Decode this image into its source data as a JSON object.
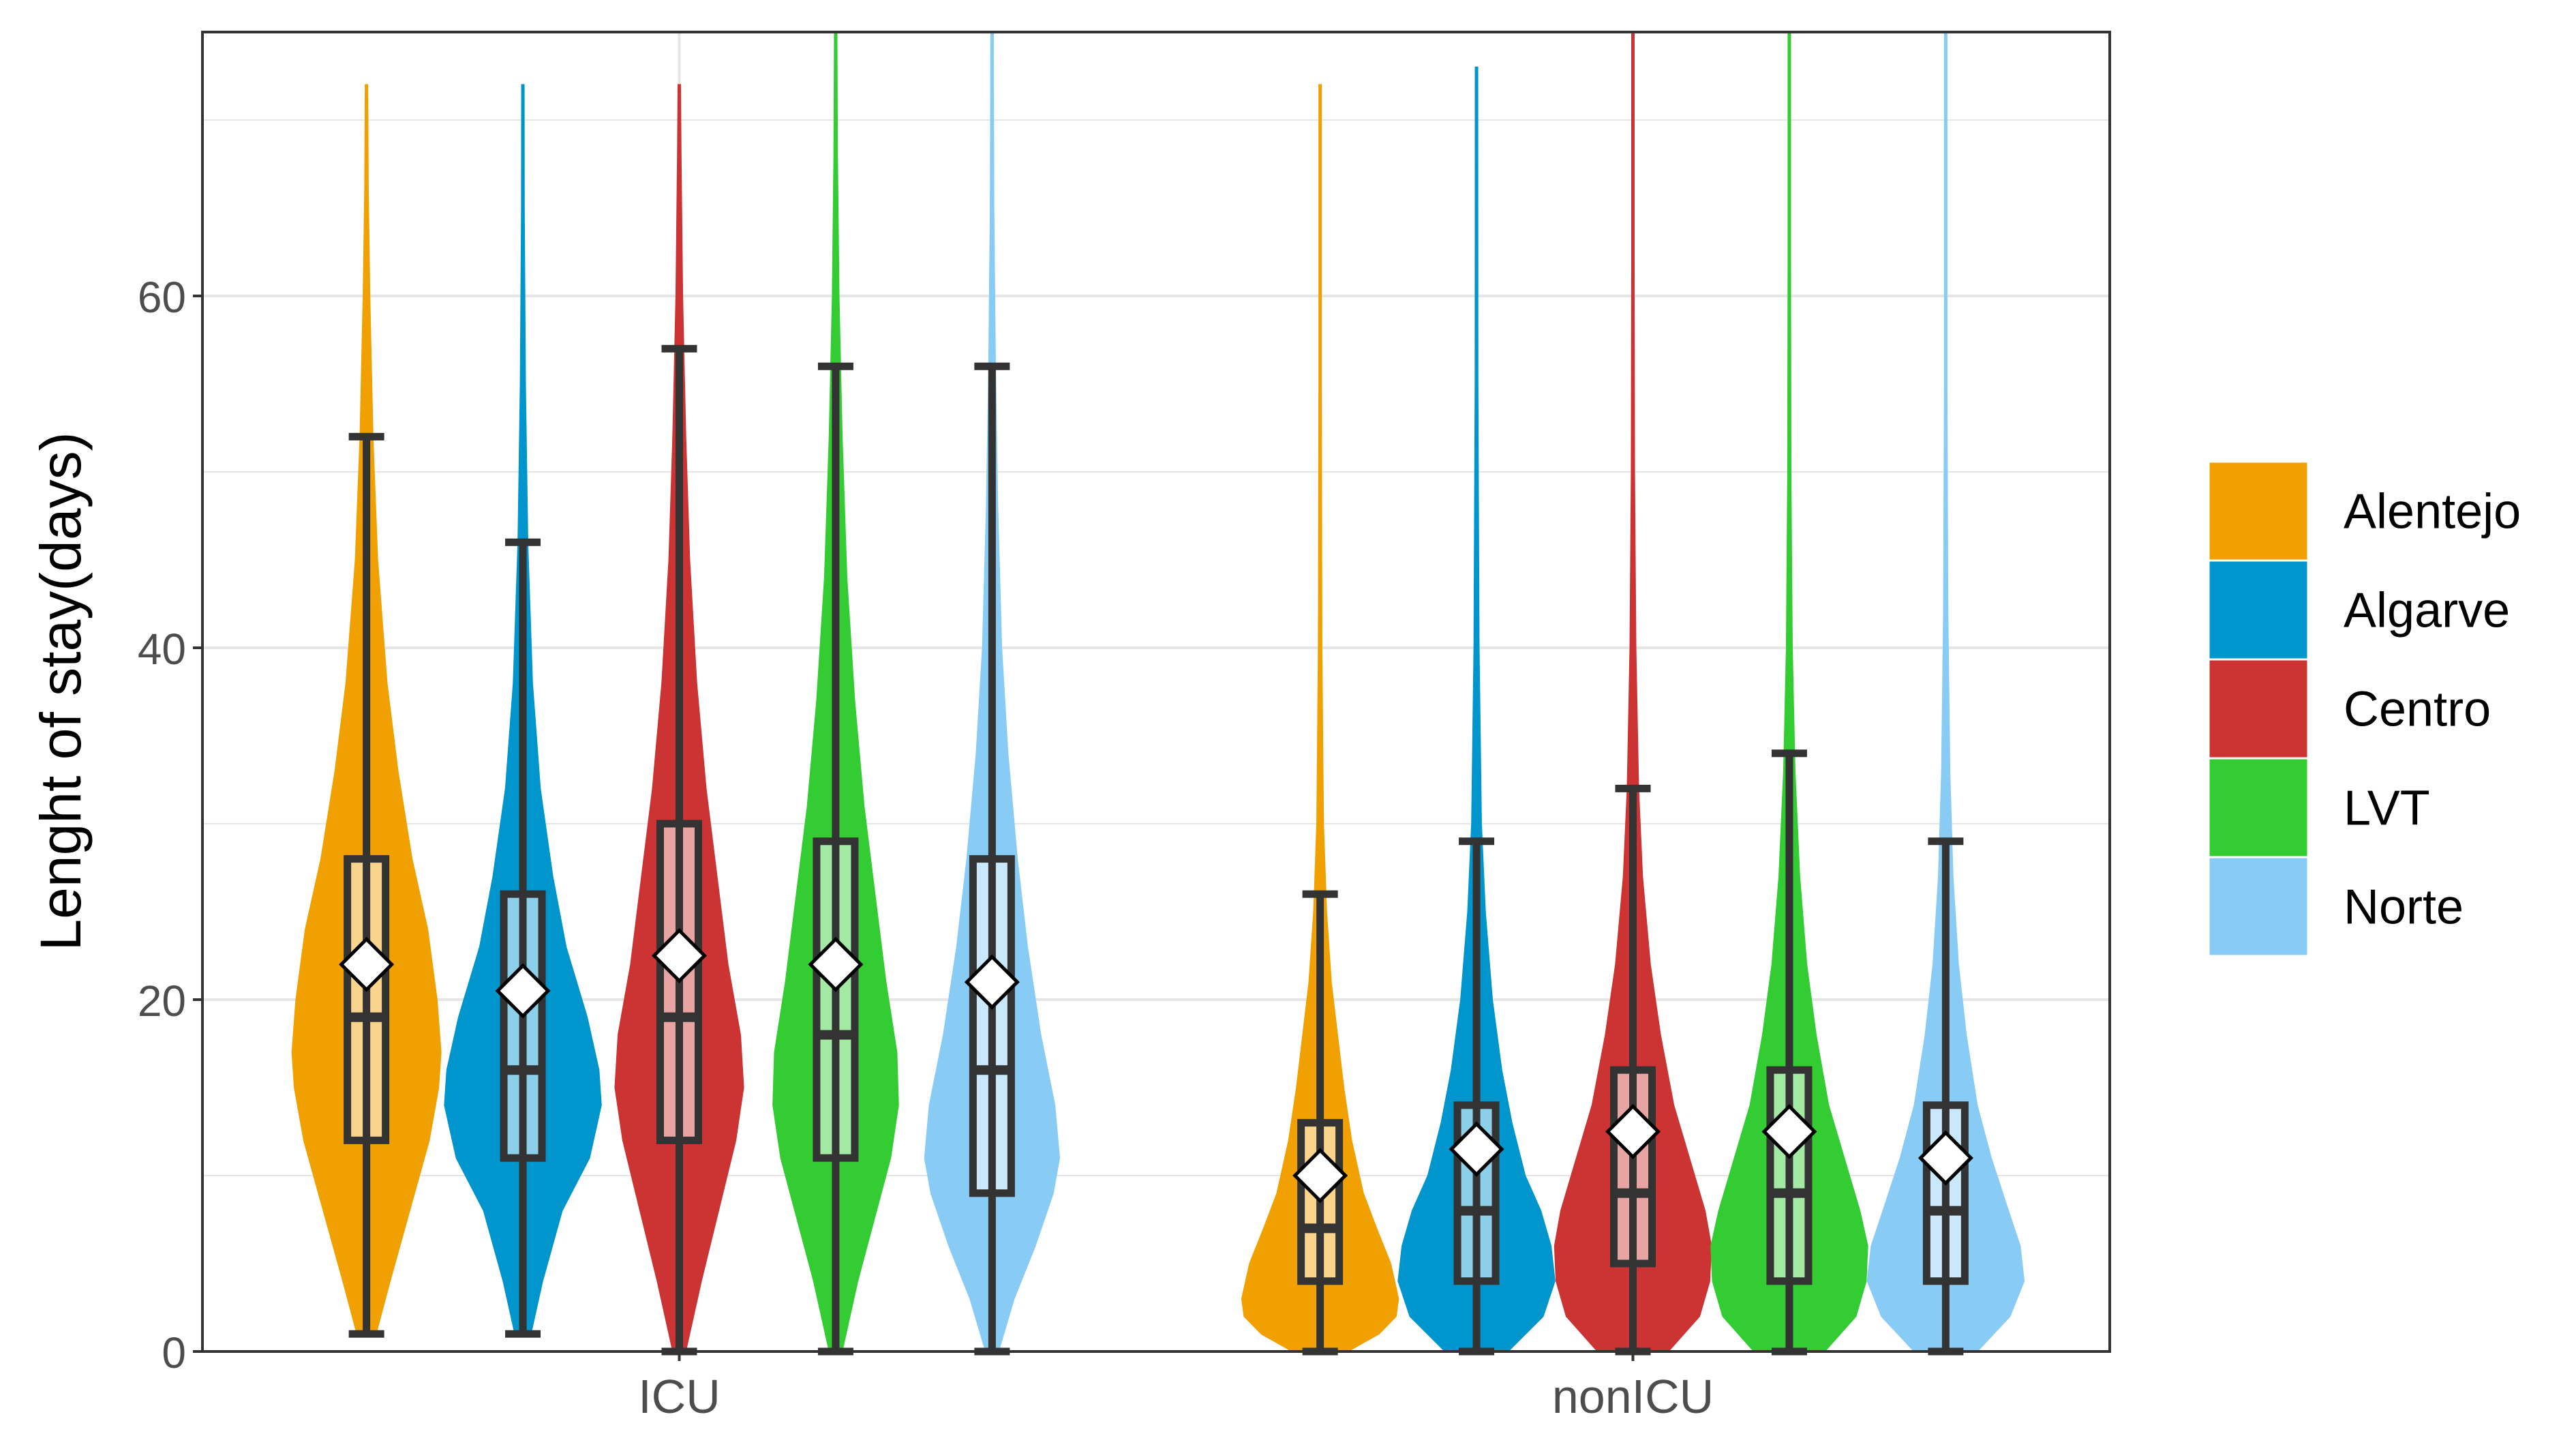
{
  "chart_data": {
    "type": "violin",
    "title": "",
    "xlabel": "",
    "ylabel": "Lenght of stay(days)",
    "ylim": [
      0,
      75
    ],
    "yticks": [
      0,
      20,
      40,
      60
    ],
    "grid": true,
    "legend_position": "right",
    "categories": [
      "ICU",
      "nonICU"
    ],
    "series": [
      {
        "name": "Alentejo",
        "color": "#F0A000",
        "groups": [
          {
            "category": "ICU",
            "min": 1,
            "q1": 12,
            "median": 19,
            "q3": 28,
            "whisker_high": 52,
            "max": 72,
            "mean": 22,
            "density": [
              [
                1,
                0.12
              ],
              [
                4,
                0.3
              ],
              [
                8,
                0.55
              ],
              [
                12,
                0.8
              ],
              [
                15,
                0.92
              ],
              [
                17,
                0.95
              ],
              [
                20,
                0.9
              ],
              [
                24,
                0.78
              ],
              [
                28,
                0.58
              ],
              [
                33,
                0.4
              ],
              [
                38,
                0.26
              ],
              [
                45,
                0.14
              ],
              [
                52,
                0.08
              ],
              [
                60,
                0.04
              ],
              [
                66,
                0.02
              ],
              [
                72,
                0.005
              ]
            ]
          },
          {
            "category": "nonICU",
            "min": 0,
            "q1": 4,
            "median": 7,
            "q3": 13,
            "whisker_high": 26,
            "max": 72,
            "mean": 10,
            "density": [
              [
                0,
                0.35
              ],
              [
                1,
                0.75
              ],
              [
                2,
                0.97
              ],
              [
                3,
                1.0
              ],
              [
                5,
                0.9
              ],
              [
                7,
                0.72
              ],
              [
                9,
                0.55
              ],
              [
                12,
                0.4
              ],
              [
                15,
                0.3
              ],
              [
                18,
                0.22
              ],
              [
                21,
                0.14
              ],
              [
                25,
                0.08
              ],
              [
                30,
                0.04
              ],
              [
                40,
                0.02
              ],
              [
                55,
                0.012
              ],
              [
                72,
                0.004
              ]
            ]
          }
        ]
      },
      {
        "name": "Algarve",
        "color": "#0095CC",
        "groups": [
          {
            "category": "ICU",
            "min": 1,
            "q1": 11,
            "median": 16,
            "q3": 26,
            "whisker_high": 46,
            "max": 72,
            "mean": 20.5,
            "density": [
              [
                1,
                0.1
              ],
              [
                4,
                0.25
              ],
              [
                8,
                0.5
              ],
              [
                11,
                0.85
              ],
              [
                14,
                1.0
              ],
              [
                16,
                0.97
              ],
              [
                19,
                0.82
              ],
              [
                23,
                0.55
              ],
              [
                27,
                0.38
              ],
              [
                32,
                0.22
              ],
              [
                38,
                0.12
              ],
              [
                46,
                0.06
              ],
              [
                55,
                0.03
              ],
              [
                65,
                0.015
              ],
              [
                72,
                0.005
              ]
            ]
          },
          {
            "category": "nonICU",
            "min": 0,
            "q1": 4,
            "median": 8,
            "q3": 14,
            "whisker_high": 29,
            "max": 73,
            "mean": 11.5,
            "density": [
              [
                0,
                0.4
              ],
              [
                2,
                0.85
              ],
              [
                4,
                1.0
              ],
              [
                6,
                0.95
              ],
              [
                8,
                0.82
              ],
              [
                10,
                0.62
              ],
              [
                13,
                0.45
              ],
              [
                16,
                0.32
              ],
              [
                20,
                0.2
              ],
              [
                25,
                0.11
              ],
              [
                30,
                0.06
              ],
              [
                40,
                0.03
              ],
              [
                55,
                0.015
              ],
              [
                73,
                0.004
              ]
            ]
          }
        ]
      },
      {
        "name": "Centro",
        "color": "#CC3333",
        "groups": [
          {
            "category": "ICU",
            "min": 0,
            "q1": 12,
            "median": 19,
            "q3": 30,
            "whisker_high": 57,
            "max": 72,
            "mean": 22.5,
            "density": [
              [
                0,
                0.08
              ],
              [
                4,
                0.28
              ],
              [
                8,
                0.5
              ],
              [
                12,
                0.72
              ],
              [
                15,
                0.82
              ],
              [
                18,
                0.78
              ],
              [
                22,
                0.62
              ],
              [
                27,
                0.48
              ],
              [
                32,
                0.34
              ],
              [
                38,
                0.22
              ],
              [
                45,
                0.13
              ],
              [
                52,
                0.08
              ],
              [
                60,
                0.04
              ],
              [
                68,
                0.02
              ],
              [
                72,
                0.006
              ]
            ]
          },
          {
            "category": "nonICU",
            "min": 0,
            "q1": 5,
            "median": 9,
            "q3": 16,
            "whisker_high": 32,
            "max": 75,
            "mean": 12.5,
            "density": [
              [
                0,
                0.45
              ],
              [
                2,
                0.85
              ],
              [
                4,
                0.98
              ],
              [
                6,
                1.0
              ],
              [
                8,
                0.92
              ],
              [
                11,
                0.72
              ],
              [
                14,
                0.52
              ],
              [
                18,
                0.35
              ],
              [
                22,
                0.22
              ],
              [
                27,
                0.12
              ],
              [
                32,
                0.07
              ],
              [
                40,
                0.035
              ],
              [
                50,
                0.018
              ],
              [
                62,
                0.01
              ],
              [
                75,
                0.003
              ]
            ]
          }
        ]
      },
      {
        "name": "LVT",
        "color": "#33CC33",
        "groups": [
          {
            "category": "ICU",
            "min": 0,
            "q1": 11,
            "median": 18,
            "q3": 29,
            "whisker_high": 56,
            "max": 75,
            "mean": 22,
            "density": [
              [
                0,
                0.08
              ],
              [
                4,
                0.28
              ],
              [
                8,
                0.52
              ],
              [
                11,
                0.7
              ],
              [
                14,
                0.8
              ],
              [
                17,
                0.78
              ],
              [
                21,
                0.64
              ],
              [
                26,
                0.5
              ],
              [
                31,
                0.36
              ],
              [
                37,
                0.24
              ],
              [
                44,
                0.14
              ],
              [
                52,
                0.08
              ],
              [
                60,
                0.04
              ],
              [
                68,
                0.02
              ],
              [
                75,
                0.006
              ]
            ]
          },
          {
            "category": "nonICU",
            "min": 0,
            "q1": 4,
            "median": 9,
            "q3": 16,
            "whisker_high": 34,
            "max": 75,
            "mean": 12.5,
            "density": [
              [
                0,
                0.45
              ],
              [
                2,
                0.85
              ],
              [
                4,
                0.98
              ],
              [
                6,
                1.0
              ],
              [
                8,
                0.9
              ],
              [
                11,
                0.7
              ],
              [
                14,
                0.5
              ],
              [
                18,
                0.34
              ],
              [
                22,
                0.22
              ],
              [
                27,
                0.13
              ],
              [
                33,
                0.07
              ],
              [
                40,
                0.035
              ],
              [
                50,
                0.018
              ],
              [
                62,
                0.01
              ],
              [
                75,
                0.003
              ]
            ]
          }
        ]
      },
      {
        "name": "Norte",
        "color": "#88CCF5",
        "groups": [
          {
            "category": "ICU",
            "min": 0,
            "q1": 9,
            "median": 16,
            "q3": 28,
            "whisker_high": 56,
            "max": 75,
            "mean": 21,
            "density": [
              [
                0,
                0.08
              ],
              [
                3,
                0.28
              ],
              [
                6,
                0.55
              ],
              [
                9,
                0.78
              ],
              [
                11,
                0.86
              ],
              [
                14,
                0.8
              ],
              [
                18,
                0.62
              ],
              [
                23,
                0.45
              ],
              [
                28,
                0.32
              ],
              [
                34,
                0.2
              ],
              [
                40,
                0.12
              ],
              [
                48,
                0.07
              ],
              [
                56,
                0.04
              ],
              [
                65,
                0.02
              ],
              [
                75,
                0.005
              ]
            ]
          },
          {
            "category": "nonICU",
            "min": 0,
            "q1": 4,
            "median": 8,
            "q3": 14,
            "whisker_high": 29,
            "max": 75,
            "mean": 11,
            "density": [
              [
                0,
                0.4
              ],
              [
                2,
                0.82
              ],
              [
                4,
                1.0
              ],
              [
                6,
                0.95
              ],
              [
                8,
                0.8
              ],
              [
                11,
                0.58
              ],
              [
                14,
                0.4
              ],
              [
                18,
                0.26
              ],
              [
                22,
                0.16
              ],
              [
                27,
                0.09
              ],
              [
                33,
                0.05
              ],
              [
                42,
                0.025
              ],
              [
                55,
                0.012
              ],
              [
                75,
                0.003
              ]
            ]
          }
        ]
      }
    ]
  }
}
